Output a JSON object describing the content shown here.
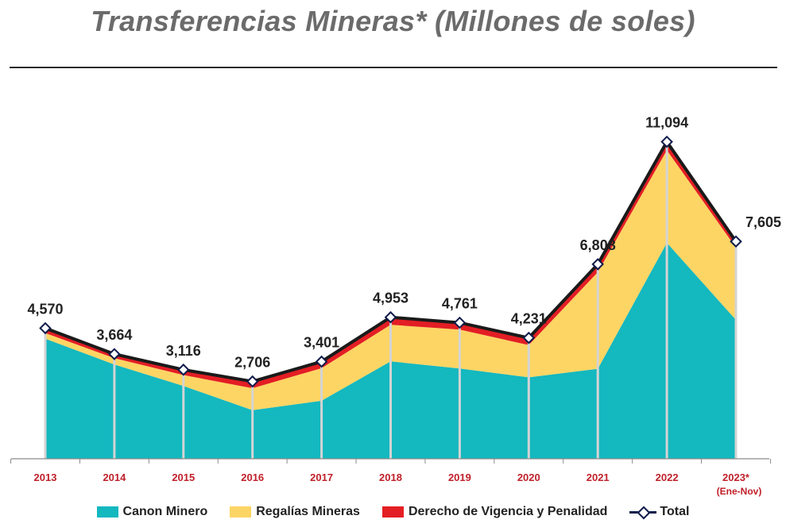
{
  "title": "Transferencias Mineras* (Millones de soles)",
  "colors": {
    "canon": "#14b8bf",
    "regalias": "#fdd564",
    "derecho": "#e31e24",
    "total_line": "#1a1a1a",
    "marker": "#0d1a4a",
    "tick_label": "#c0202a",
    "guide": "#d4d4d4"
  },
  "chart_data": {
    "type": "area",
    "title": "Transferencias Mineras* (Millones de soles)",
    "stacked": true,
    "categories": [
      "2013",
      "2014",
      "2015",
      "2016",
      "2017",
      "2018",
      "2019",
      "2020",
      "2021",
      "2022",
      "2023*"
    ],
    "category_sublabels": [
      "",
      "",
      "",
      "",
      "",
      "",
      "",
      "",
      "",
      "",
      "(Ene-Nov)"
    ],
    "ylim": [
      0,
      12500
    ],
    "series": [
      {
        "name": "Canon Minero",
        "key": "canon",
        "values": [
          4200,
          3300,
          2550,
          1700,
          2030,
          3410,
          3160,
          2850,
          3150,
          7560,
          4860
        ]
      },
      {
        "name": "Regalías Mineras",
        "key": "regalias",
        "values": [
          200,
          220,
          380,
          770,
          1140,
          1280,
          1360,
          1130,
          3380,
          3240,
          2530
        ]
      },
      {
        "name": "Derecho de Vigencia y Penalidad",
        "key": "derecho",
        "values": [
          170,
          144,
          186,
          236,
          231,
          263,
          241,
          251,
          278,
          294,
          215
        ]
      }
    ],
    "total": {
      "name": "Total",
      "values": [
        4570,
        3664,
        3116,
        2706,
        3401,
        4953,
        4761,
        4231,
        6808,
        11094,
        7605
      ],
      "labels": [
        "4,570",
        "3,664",
        "3,116",
        "2,706",
        "3,401",
        "4,953",
        "4,761",
        "4,231",
        "6,808",
        "11,094",
        "7,605"
      ]
    },
    "legend": [
      "Canon Minero",
      "Regalías Mineras",
      "Derecho de Vigencia y Penalidad",
      "Total"
    ]
  }
}
